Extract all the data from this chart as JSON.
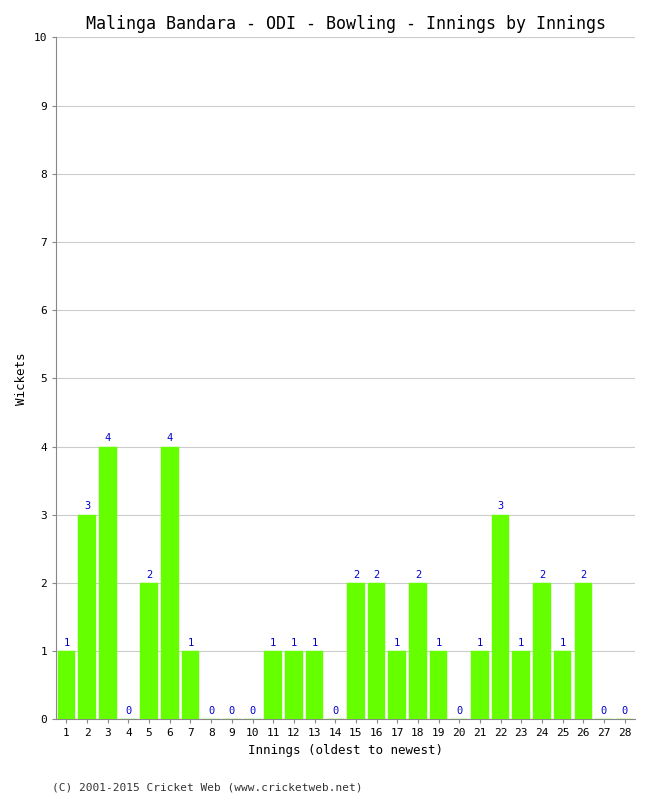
{
  "title": "Malinga Bandara - ODI - Bowling - Innings by Innings",
  "xlabel": "Innings (oldest to newest)",
  "ylabel": "Wickets",
  "categories": [
    "1",
    "2",
    "3",
    "4",
    "5",
    "6",
    "7",
    "8",
    "9",
    "10",
    "11",
    "12",
    "13",
    "14",
    "15",
    "16",
    "17",
    "18",
    "19",
    "20",
    "21",
    "22",
    "23",
    "24",
    "25",
    "26",
    "27",
    "28"
  ],
  "values": [
    1,
    3,
    4,
    0,
    2,
    4,
    1,
    0,
    0,
    0,
    1,
    1,
    1,
    0,
    2,
    2,
    1,
    2,
    1,
    0,
    1,
    3,
    1,
    2,
    1,
    2,
    0,
    0
  ],
  "bar_color": "#66FF00",
  "bar_edge_color": "#66FF00",
  "label_color": "#0000CC",
  "ylim": [
    0,
    10
  ],
  "yticks": [
    0,
    1,
    2,
    3,
    4,
    5,
    6,
    7,
    8,
    9,
    10
  ],
  "background_color": "#FFFFFF",
  "grid_color": "#CCCCCC",
  "title_fontsize": 12,
  "axis_label_fontsize": 9,
  "tick_fontsize": 8,
  "bar_label_fontsize": 7.5,
  "footer": "(C) 2001-2015 Cricket Web (www.cricketweb.net)"
}
